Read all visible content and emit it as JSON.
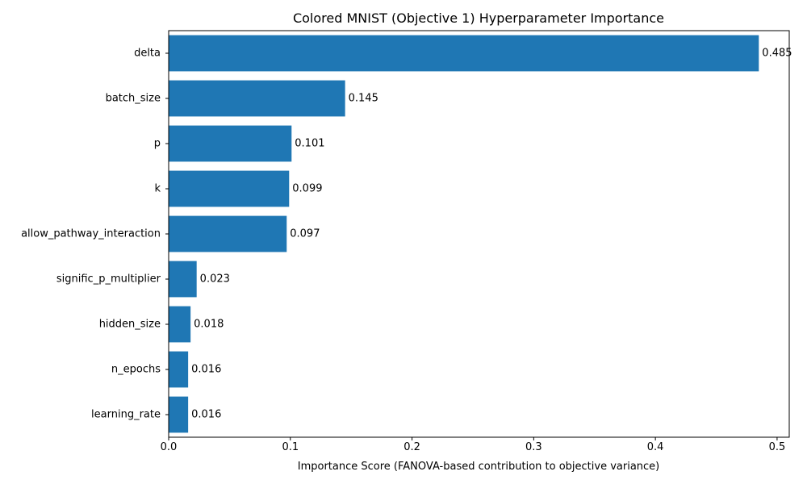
{
  "chart_data": {
    "type": "bar",
    "orientation": "horizontal",
    "title": "Colored MNIST (Objective 1) Hyperparameter Importance",
    "xlabel": "Importance Score (FANOVA-based contribution to objective variance)",
    "ylabel": "",
    "xlim": [
      0,
      0.51
    ],
    "x_ticks": [
      0.0,
      0.1,
      0.2,
      0.3,
      0.4,
      0.5
    ],
    "x_tick_labels": [
      "0.0",
      "0.1",
      "0.2",
      "0.3",
      "0.4",
      "0.5"
    ],
    "grid": false,
    "bar_color": "#1f77b4",
    "categories": [
      "delta",
      "batch_size",
      "p",
      "k",
      "allow_pathway_interaction",
      "signific_p_multiplier",
      "hidden_size",
      "n_epochs",
      "learning_rate"
    ],
    "values": [
      0.485,
      0.145,
      0.101,
      0.099,
      0.097,
      0.023,
      0.018,
      0.016,
      0.016
    ],
    "value_labels": [
      "0.485",
      "0.145",
      "0.101",
      "0.099",
      "0.097",
      "0.023",
      "0.018",
      "0.016",
      "0.016"
    ]
  }
}
